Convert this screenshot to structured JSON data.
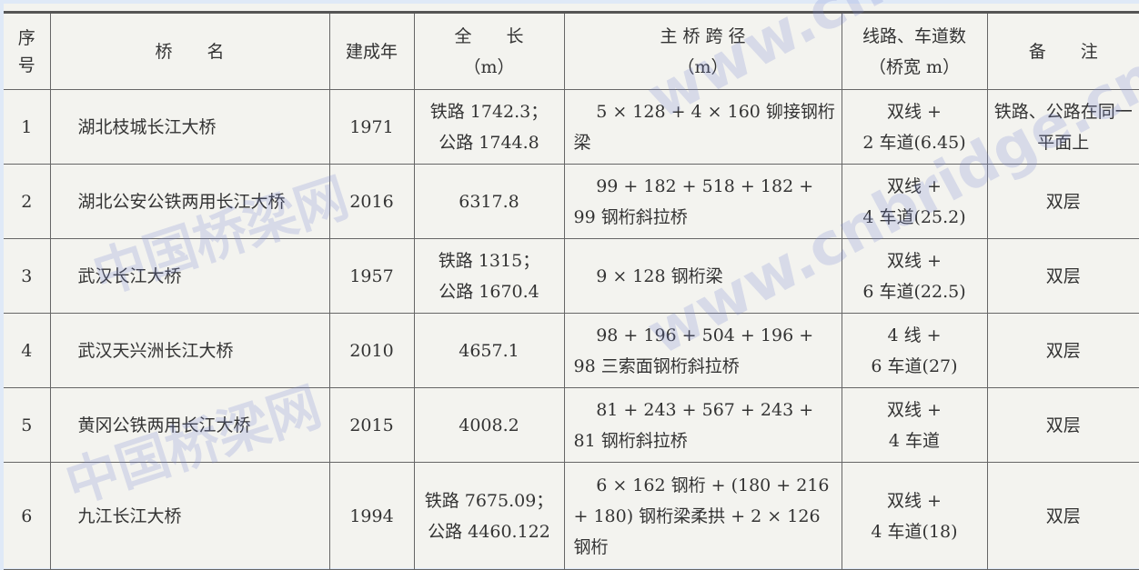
{
  "headers": [
    "序号",
    "桥　　名",
    "建成年",
    "全　　长\n（m）",
    "主 桥 跨 径\n（m）",
    "线路、车道数\n（桥宽 m）",
    "备　　注"
  ],
  "rows": [
    {
      "no": "1",
      "name": "湖北枝城长江大桥",
      "year": "1971",
      "length": "铁路 1742.3；\n公路 1744.8",
      "span": "5 × 128 + 4 × 160 铆接钢桁梁",
      "lanes": "双线 +\n2 车道(6.45)",
      "note": "铁路、公路在同一平面上"
    },
    {
      "no": "2",
      "name": "湖北公安公铁两用长江大桥",
      "year": "2016",
      "length": "6317.8",
      "span": "99 + 182 + 518 + 182 + 99 钢桁斜拉桥",
      "lanes": "双线 +\n4 车道(25.2)",
      "note": "双层"
    },
    {
      "no": "3",
      "name": "武汉长江大桥",
      "year": "1957",
      "length": "铁路 1315；\n公路 1670.4",
      "span": "9 × 128 钢桁梁",
      "lanes": "双线 +\n6 车道(22.5)",
      "note": "双层"
    },
    {
      "no": "4",
      "name": "武汉天兴洲长江大桥",
      "year": "2010",
      "length": "4657.1",
      "span": "98 + 196 + 504 + 196 + 98 三索面钢桁斜拉桥",
      "lanes": "4 线 +\n6 车道(27)",
      "note": "双层"
    },
    {
      "no": "5",
      "name": "黄冈公铁两用长江大桥",
      "year": "2015",
      "length": "4008.2",
      "span": "81 + 243 + 567 + 243 + 81 钢桁斜拉桥",
      "lanes": "双线 +\n4 车道",
      "note": "双层"
    },
    {
      "no": "6",
      "name": "九江长江大桥",
      "year": "1994",
      "length": "铁路 7675.09；\n公路 4460.122",
      "span": "6 × 162 钢桁 + (180 + 216 + 180) 钢桁梁柔拱 + 2 × 126 钢桁",
      "lanes": "双线 +\n4 车道(18)",
      "note": "双层"
    }
  ],
  "watermark": {
    "url": "www.cnbridge.cn",
    "site": "中国桥梁网"
  }
}
